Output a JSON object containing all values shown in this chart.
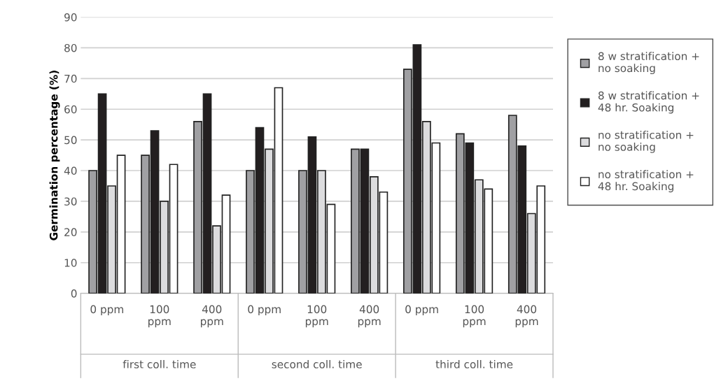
{
  "chart_data": {
    "type": "bar",
    "ylabel": "Germination percentage (%)",
    "categories": [
      "0 ppm",
      "100 ppm",
      "400 ppm",
      "0 ppm",
      "100 ppm",
      "400 ppm",
      "0 ppm",
      "100 ppm",
      "400 ppm"
    ],
    "series": [
      {
        "name": "8 w stratification + no soaking",
        "color": "#a0a0a3",
        "values": [
          40,
          45,
          56,
          40,
          40,
          47,
          73,
          52,
          58
        ]
      },
      {
        "name": "8 w stratification + 48 hr. Soaking",
        "color": "#231f20",
        "values": [
          65,
          53,
          65,
          54,
          51,
          47,
          81,
          49,
          48
        ]
      },
      {
        "name": "no stratification + no soaking",
        "color": "#dcdcde",
        "values": [
          35,
          30,
          22,
          47,
          40,
          38,
          56,
          37,
          26
        ]
      },
      {
        "name": "no stratification + 48 hr. Soaking",
        "color": "#ffffff",
        "values": [
          45,
          42,
          32,
          67,
          29,
          33,
          49,
          34,
          35
        ]
      }
    ],
    "annotations": [
      "first coll. time",
      "second coll. time",
      "third coll. time"
    ],
    "ylim": [
      0,
      90
    ],
    "yticks": [
      0,
      10,
      20,
      30,
      40,
      50,
      60,
      70,
      80,
      90
    ],
    "grid": "y",
    "legend": "right"
  }
}
